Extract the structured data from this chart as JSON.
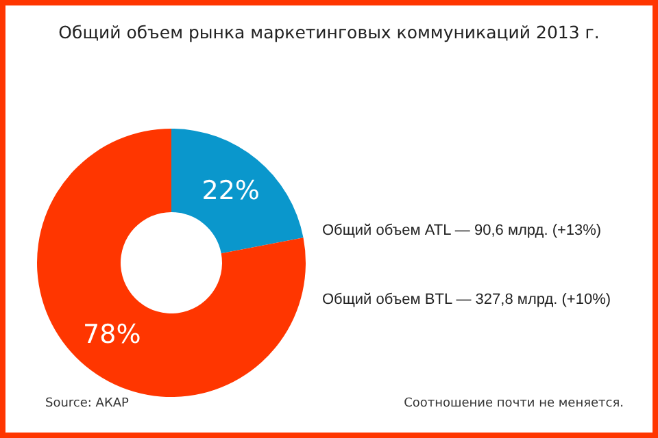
{
  "chart_data": {
    "type": "donut",
    "title": "Общий объем рынка маркетинговых коммуникаций 2013 г.",
    "categories": [
      "Общий объем ATL — 90,6 млрд. (+13%)",
      "Общий объем BTL — 327,8 млрд. (+10%)"
    ],
    "values": [
      22,
      78
    ],
    "colors": [
      "#0a97cc",
      "#ff3600"
    ],
    "value_labels": [
      "22%",
      "78%"
    ],
    "annotations": [
      "Source: АКАР",
      "Соотношение почти не меняется."
    ]
  }
}
